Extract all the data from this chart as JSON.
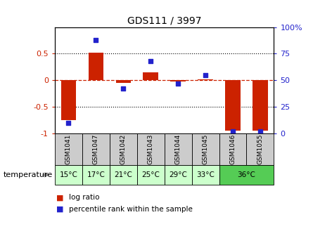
{
  "title": "GDS111 / 3997",
  "samples": [
    "GSM1041",
    "GSM1047",
    "GSM1042",
    "GSM1043",
    "GSM1044",
    "GSM1045",
    "GSM1046",
    "GSM1055"
  ],
  "log_ratio": [
    -0.75,
    0.52,
    -0.05,
    0.15,
    -0.02,
    0.02,
    -0.95,
    -0.95
  ],
  "percentile_rank": [
    10,
    88,
    42,
    68,
    47,
    55,
    2,
    2
  ],
  "temp_groups": [
    {
      "label": "15°C",
      "indices": [
        0
      ],
      "color": "#ccffcc"
    },
    {
      "label": "17°C",
      "indices": [
        1
      ],
      "color": "#ccffcc"
    },
    {
      "label": "21°C",
      "indices": [
        2
      ],
      "color": "#ccffcc"
    },
    {
      "label": "25°C",
      "indices": [
        3
      ],
      "color": "#ccffcc"
    },
    {
      "label": "29°C",
      "indices": [
        4
      ],
      "color": "#ccffcc"
    },
    {
      "label": "33°C",
      "indices": [
        5
      ],
      "color": "#ccffcc"
    },
    {
      "label": "36°C",
      "indices": [
        6,
        7
      ],
      "color": "#55cc55"
    }
  ],
  "bar_color": "#cc2200",
  "dot_color": "#2222cc",
  "zero_line_color": "#cc2200",
  "sample_box_color": "#cccccc",
  "ylim_left": [
    -1,
    1
  ],
  "ylim_right": [
    0,
    100
  ],
  "yticks_left": [
    -1,
    -0.5,
    0,
    0.5
  ],
  "yticks_right": [
    0,
    25,
    50,
    75,
    100
  ],
  "bar_width": 0.55,
  "legend_log_ratio": "log ratio",
  "legend_percentile": "percentile rank within the sample",
  "temperature_label": "temperature",
  "title_fontsize": 10
}
